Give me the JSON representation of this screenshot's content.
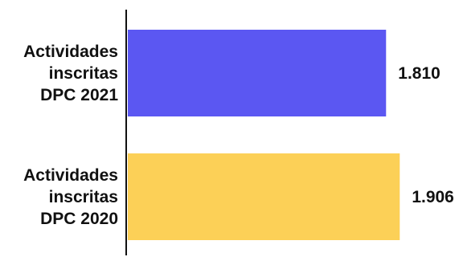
{
  "chart_data": {
    "type": "bar",
    "orientation": "horizontal",
    "categories": [
      [
        "Actividades",
        "inscritas",
        "DPC 2021"
      ],
      [
        "Actividades",
        "inscritas",
        "DPC 2020"
      ]
    ],
    "values": [
      1810,
      1906
    ],
    "value_labels": [
      "1.810",
      "1.906"
    ],
    "colors": [
      "#5B57F2",
      "#FCD057"
    ],
    "xlim": [
      0,
      2000
    ],
    "grid": false,
    "legend": "none"
  }
}
